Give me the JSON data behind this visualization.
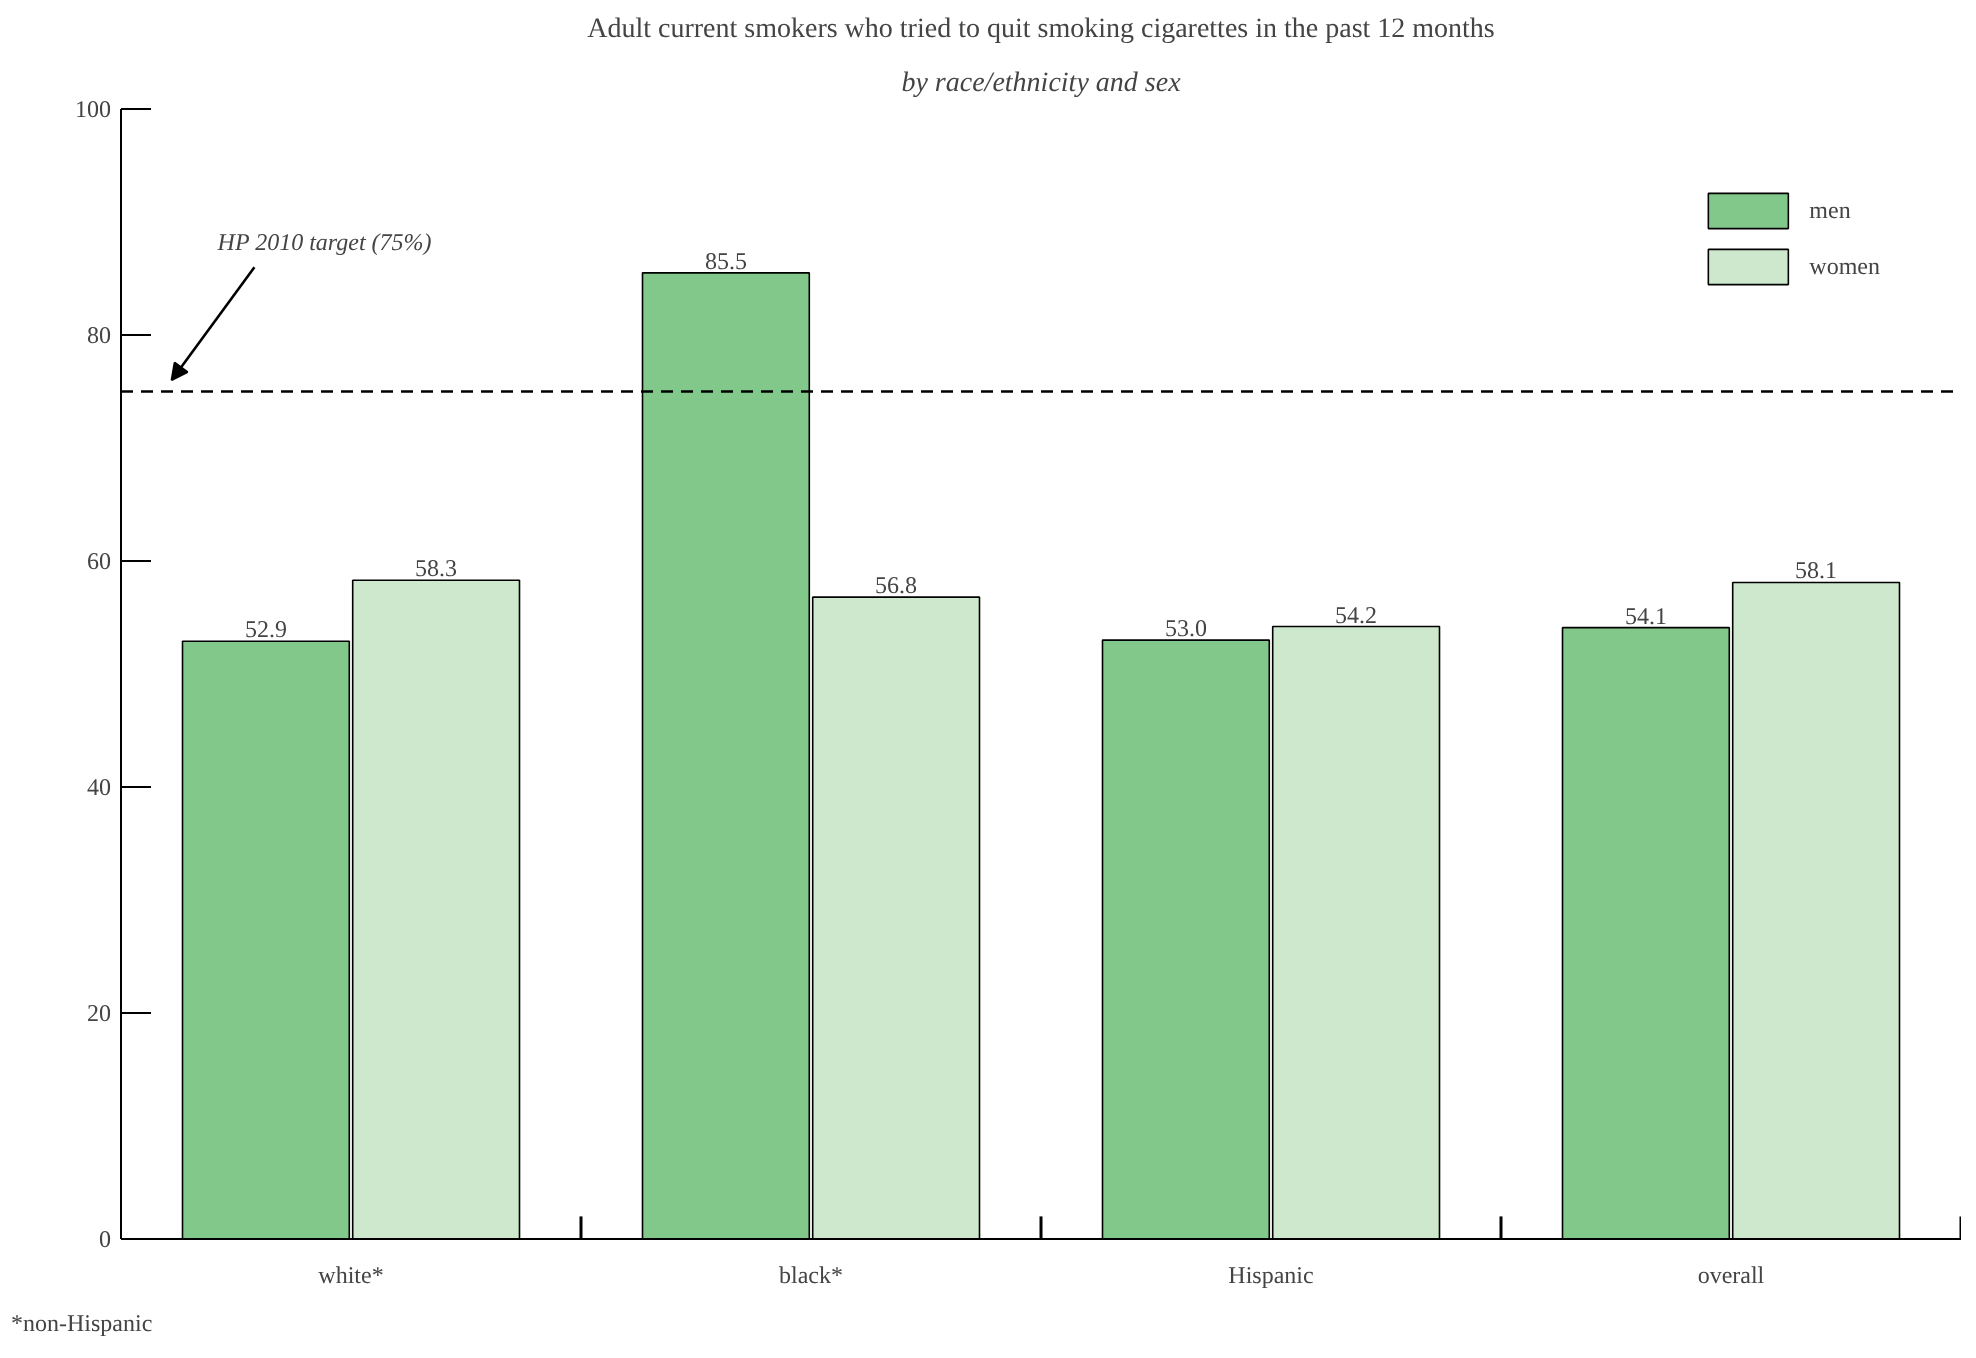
{
  "chart_data": {
    "type": "bar",
    "title": "Adult current smokers who tried to quit smoking cigarettes in the past 12 months",
    "subtitle": "by race/ethnicity and sex",
    "categories": [
      "white*",
      "black*",
      "Hispanic",
      "overall"
    ],
    "series": [
      {
        "name": "men",
        "color": "#82c88a",
        "values": [
          52.9,
          85.5,
          53.0,
          54.1
        ],
        "value_labels": [
          "52.9",
          "85.5",
          "53.0",
          "54.1"
        ]
      },
      {
        "name": "women",
        "color": "#cde8cc",
        "values": [
          58.3,
          56.8,
          54.2,
          58.1
        ],
        "value_labels": [
          "58.3",
          "56.8",
          "54.2",
          "58.1"
        ]
      }
    ],
    "ylim": [
      0,
      100
    ],
    "yticks": [
      0,
      20,
      40,
      60,
      80,
      100
    ],
    "grid": false,
    "legend": "top right",
    "data_labels": true,
    "ref_lines": [
      {
        "axis": "y",
        "value": 75,
        "label": "HP 2010 target (75%)",
        "line_style": "dashed",
        "color": "#000000"
      }
    ],
    "annotations": [
      "*non-Hispanic"
    ]
  }
}
